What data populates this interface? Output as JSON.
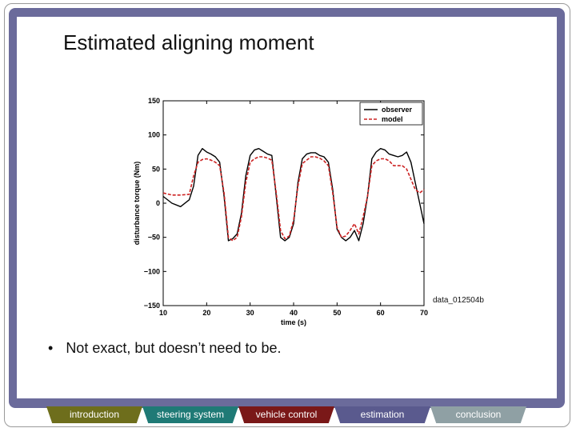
{
  "slide": {
    "title": "Estimated aligning moment",
    "figure_caption": "data_012504b",
    "bullet": "Not exact, but doesn’t need to be.",
    "bullet_marker": "•",
    "colors": {
      "frame_band": "#6b6b9b",
      "background": "#ffffff",
      "observer": "#000000",
      "model": "#cc2222"
    }
  },
  "nav": {
    "items": [
      {
        "label": "introduction",
        "color": "#6e6e1c"
      },
      {
        "label": "steering system",
        "color": "#1f7a76"
      },
      {
        "label": "vehicle control",
        "color": "#7a1818"
      },
      {
        "label": "estimation",
        "color": "#5a5a8e"
      },
      {
        "label": "conclusion",
        "color": "#8fa0a4"
      }
    ]
  },
  "chart_data": {
    "type": "line",
    "title": "",
    "xlabel": "time (s)",
    "ylabel": "disturbance torque (Nm)",
    "xlim": [
      10,
      70
    ],
    "ylim": [
      -150,
      150
    ],
    "x_ticks": [
      10,
      20,
      30,
      40,
      50,
      60,
      70
    ],
    "y_ticks": [
      150,
      100,
      50,
      0,
      -50,
      -100,
      -150
    ],
    "x_tick_labels": [
      "10",
      "20",
      "30",
      "40",
      "50",
      "60",
      "70"
    ],
    "y_tick_labels": [
      "150",
      "100",
      "50",
      "0",
      "−50",
      "−100",
      "−150"
    ],
    "grid": false,
    "legend": "top-right",
    "series": [
      {
        "name": "observer",
        "color": "#000000",
        "style": "solid",
        "x": [
          10,
          12,
          14,
          16,
          17,
          18,
          19,
          20,
          21,
          22,
          23,
          24,
          25,
          26,
          27,
          28,
          29,
          30,
          31,
          32,
          33,
          34,
          35,
          36,
          37,
          38,
          39,
          40,
          41,
          42,
          43,
          44,
          45,
          46,
          47,
          48,
          49,
          50,
          51,
          52,
          53,
          54,
          55,
          56,
          57,
          58,
          59,
          60,
          61,
          62,
          63,
          64,
          65,
          66,
          67,
          68,
          69,
          70
        ],
        "y": [
          10,
          0,
          -5,
          5,
          25,
          70,
          80,
          75,
          72,
          68,
          60,
          10,
          -55,
          -52,
          -45,
          -15,
          40,
          70,
          78,
          80,
          76,
          72,
          70,
          10,
          -50,
          -55,
          -50,
          -30,
          30,
          65,
          72,
          74,
          74,
          70,
          68,
          60,
          20,
          -38,
          -50,
          -55,
          -50,
          -40,
          -55,
          -30,
          10,
          65,
          75,
          80,
          78,
          72,
          70,
          68,
          70,
          75,
          60,
          30,
          0,
          -30
        ]
      },
      {
        "name": "model",
        "color": "#cc2222",
        "style": "dashed",
        "x": [
          10,
          12,
          14,
          16,
          17,
          18,
          19,
          20,
          21,
          22,
          23,
          24,
          25,
          26,
          27,
          28,
          29,
          30,
          31,
          32,
          33,
          34,
          35,
          36,
          37,
          38,
          39,
          40,
          41,
          42,
          43,
          44,
          45,
          46,
          47,
          48,
          49,
          50,
          51,
          52,
          53,
          54,
          55,
          56,
          57,
          58,
          59,
          60,
          61,
          62,
          63,
          64,
          65,
          66,
          67,
          68,
          69,
          70
        ],
        "y": [
          15,
          12,
          12,
          13,
          40,
          60,
          64,
          65,
          63,
          60,
          55,
          15,
          -50,
          -55,
          -50,
          -20,
          30,
          60,
          65,
          68,
          68,
          66,
          63,
          15,
          -40,
          -52,
          -48,
          -25,
          25,
          58,
          63,
          68,
          68,
          66,
          62,
          55,
          15,
          -35,
          -50,
          -48,
          -40,
          -30,
          -45,
          -20,
          10,
          55,
          62,
          65,
          65,
          62,
          55,
          55,
          55,
          50,
          35,
          20,
          15,
          20
        ]
      }
    ]
  }
}
